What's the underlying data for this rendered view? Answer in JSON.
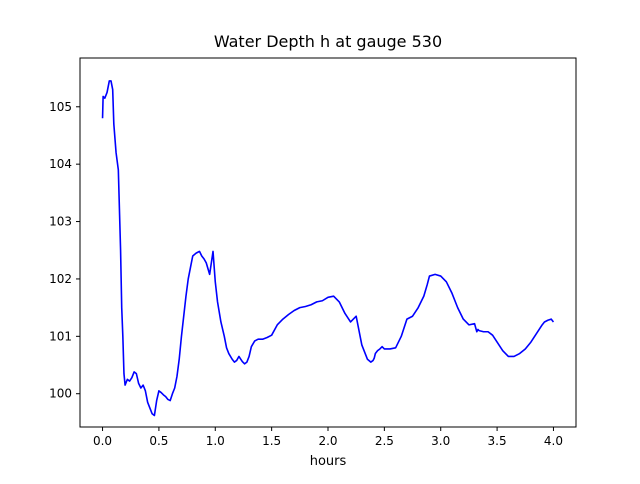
{
  "chart_data": {
    "type": "line",
    "title": "Water Depth h at gauge 530",
    "xlabel": "hours",
    "ylabel": "",
    "xlim": [
      -0.2,
      4.2
    ],
    "ylim": [
      99.42,
      105.85
    ],
    "xticks": [
      0.0,
      0.5,
      1.0,
      1.5,
      2.0,
      2.5,
      3.0,
      3.5,
      4.0
    ],
    "xtick_labels": [
      "0.0",
      "0.5",
      "1.0",
      "1.5",
      "2.0",
      "2.5",
      "3.0",
      "3.5",
      "4.0"
    ],
    "yticks": [
      100,
      101,
      102,
      103,
      104,
      105
    ],
    "ytick_labels": [
      "100",
      "101",
      "102",
      "103",
      "104",
      "105"
    ],
    "grid": false,
    "series": [
      {
        "color": "#0000ff",
        "x": [
          0.0,
          0.005,
          0.02,
          0.04,
          0.06,
          0.075,
          0.09,
          0.1,
          0.12,
          0.14,
          0.16,
          0.17,
          0.18,
          0.19,
          0.2,
          0.22,
          0.24,
          0.26,
          0.28,
          0.3,
          0.32,
          0.34,
          0.36,
          0.38,
          0.4,
          0.42,
          0.44,
          0.46,
          0.48,
          0.5,
          0.52,
          0.54,
          0.56,
          0.58,
          0.6,
          0.62,
          0.64,
          0.66,
          0.68,
          0.7,
          0.72,
          0.74,
          0.76,
          0.78,
          0.8,
          0.83,
          0.86,
          0.88,
          0.9,
          0.92,
          0.95,
          0.98,
          1.0,
          1.02,
          1.05,
          1.08,
          1.1,
          1.12,
          1.15,
          1.17,
          1.19,
          1.21,
          1.22,
          1.24,
          1.26,
          1.28,
          1.3,
          1.32,
          1.35,
          1.38,
          1.42,
          1.46,
          1.5,
          1.55,
          1.6,
          1.65,
          1.7,
          1.75,
          1.8,
          1.85,
          1.9,
          1.95,
          2.0,
          2.05,
          2.1,
          2.15,
          2.2,
          2.25,
          2.3,
          2.35,
          2.38,
          2.4,
          2.41,
          2.42,
          2.44,
          2.46,
          2.48,
          2.5,
          2.55,
          2.6,
          2.65,
          2.7,
          2.75,
          2.8,
          2.85,
          2.88,
          2.9,
          2.95,
          3.0,
          3.05,
          3.1,
          3.15,
          3.2,
          3.25,
          3.3,
          3.32,
          3.33,
          3.34,
          3.38,
          3.42,
          3.46,
          3.5,
          3.55,
          3.6,
          3.65,
          3.7,
          3.75,
          3.8,
          3.85,
          3.9,
          3.92,
          3.95,
          3.98,
          4.0
        ],
        "y": [
          104.8,
          105.18,
          105.15,
          105.25,
          105.45,
          105.45,
          105.3,
          104.7,
          104.2,
          103.9,
          102.5,
          101.5,
          101.0,
          100.35,
          100.15,
          100.25,
          100.22,
          100.28,
          100.38,
          100.35,
          100.18,
          100.1,
          100.15,
          100.05,
          99.85,
          99.75,
          99.65,
          99.62,
          99.88,
          100.05,
          100.02,
          99.98,
          99.95,
          99.9,
          99.88,
          100.0,
          100.1,
          100.3,
          100.6,
          101.0,
          101.35,
          101.7,
          102.0,
          102.2,
          102.4,
          102.45,
          102.48,
          102.4,
          102.35,
          102.28,
          102.08,
          102.48,
          101.95,
          101.6,
          101.25,
          101.0,
          100.8,
          100.7,
          100.6,
          100.55,
          100.58,
          100.65,
          100.62,
          100.56,
          100.52,
          100.55,
          100.65,
          100.82,
          100.92,
          100.95,
          100.95,
          100.98,
          101.02,
          101.2,
          101.3,
          101.38,
          101.45,
          101.5,
          101.52,
          101.55,
          101.6,
          101.62,
          101.68,
          101.7,
          101.6,
          101.4,
          101.25,
          101.35,
          100.85,
          100.6,
          100.55,
          100.58,
          100.62,
          100.7,
          100.75,
          100.78,
          100.82,
          100.78,
          100.78,
          100.8,
          101.0,
          101.3,
          101.35,
          101.5,
          101.7,
          101.9,
          102.05,
          102.08,
          102.05,
          101.95,
          101.75,
          101.5,
          101.3,
          101.2,
          101.22,
          101.08,
          101.12,
          101.1,
          101.08,
          101.08,
          101.02,
          100.9,
          100.75,
          100.65,
          100.65,
          100.7,
          100.78,
          100.9,
          101.05,
          101.2,
          101.25,
          101.28,
          101.3,
          101.25
        ]
      }
    ]
  }
}
